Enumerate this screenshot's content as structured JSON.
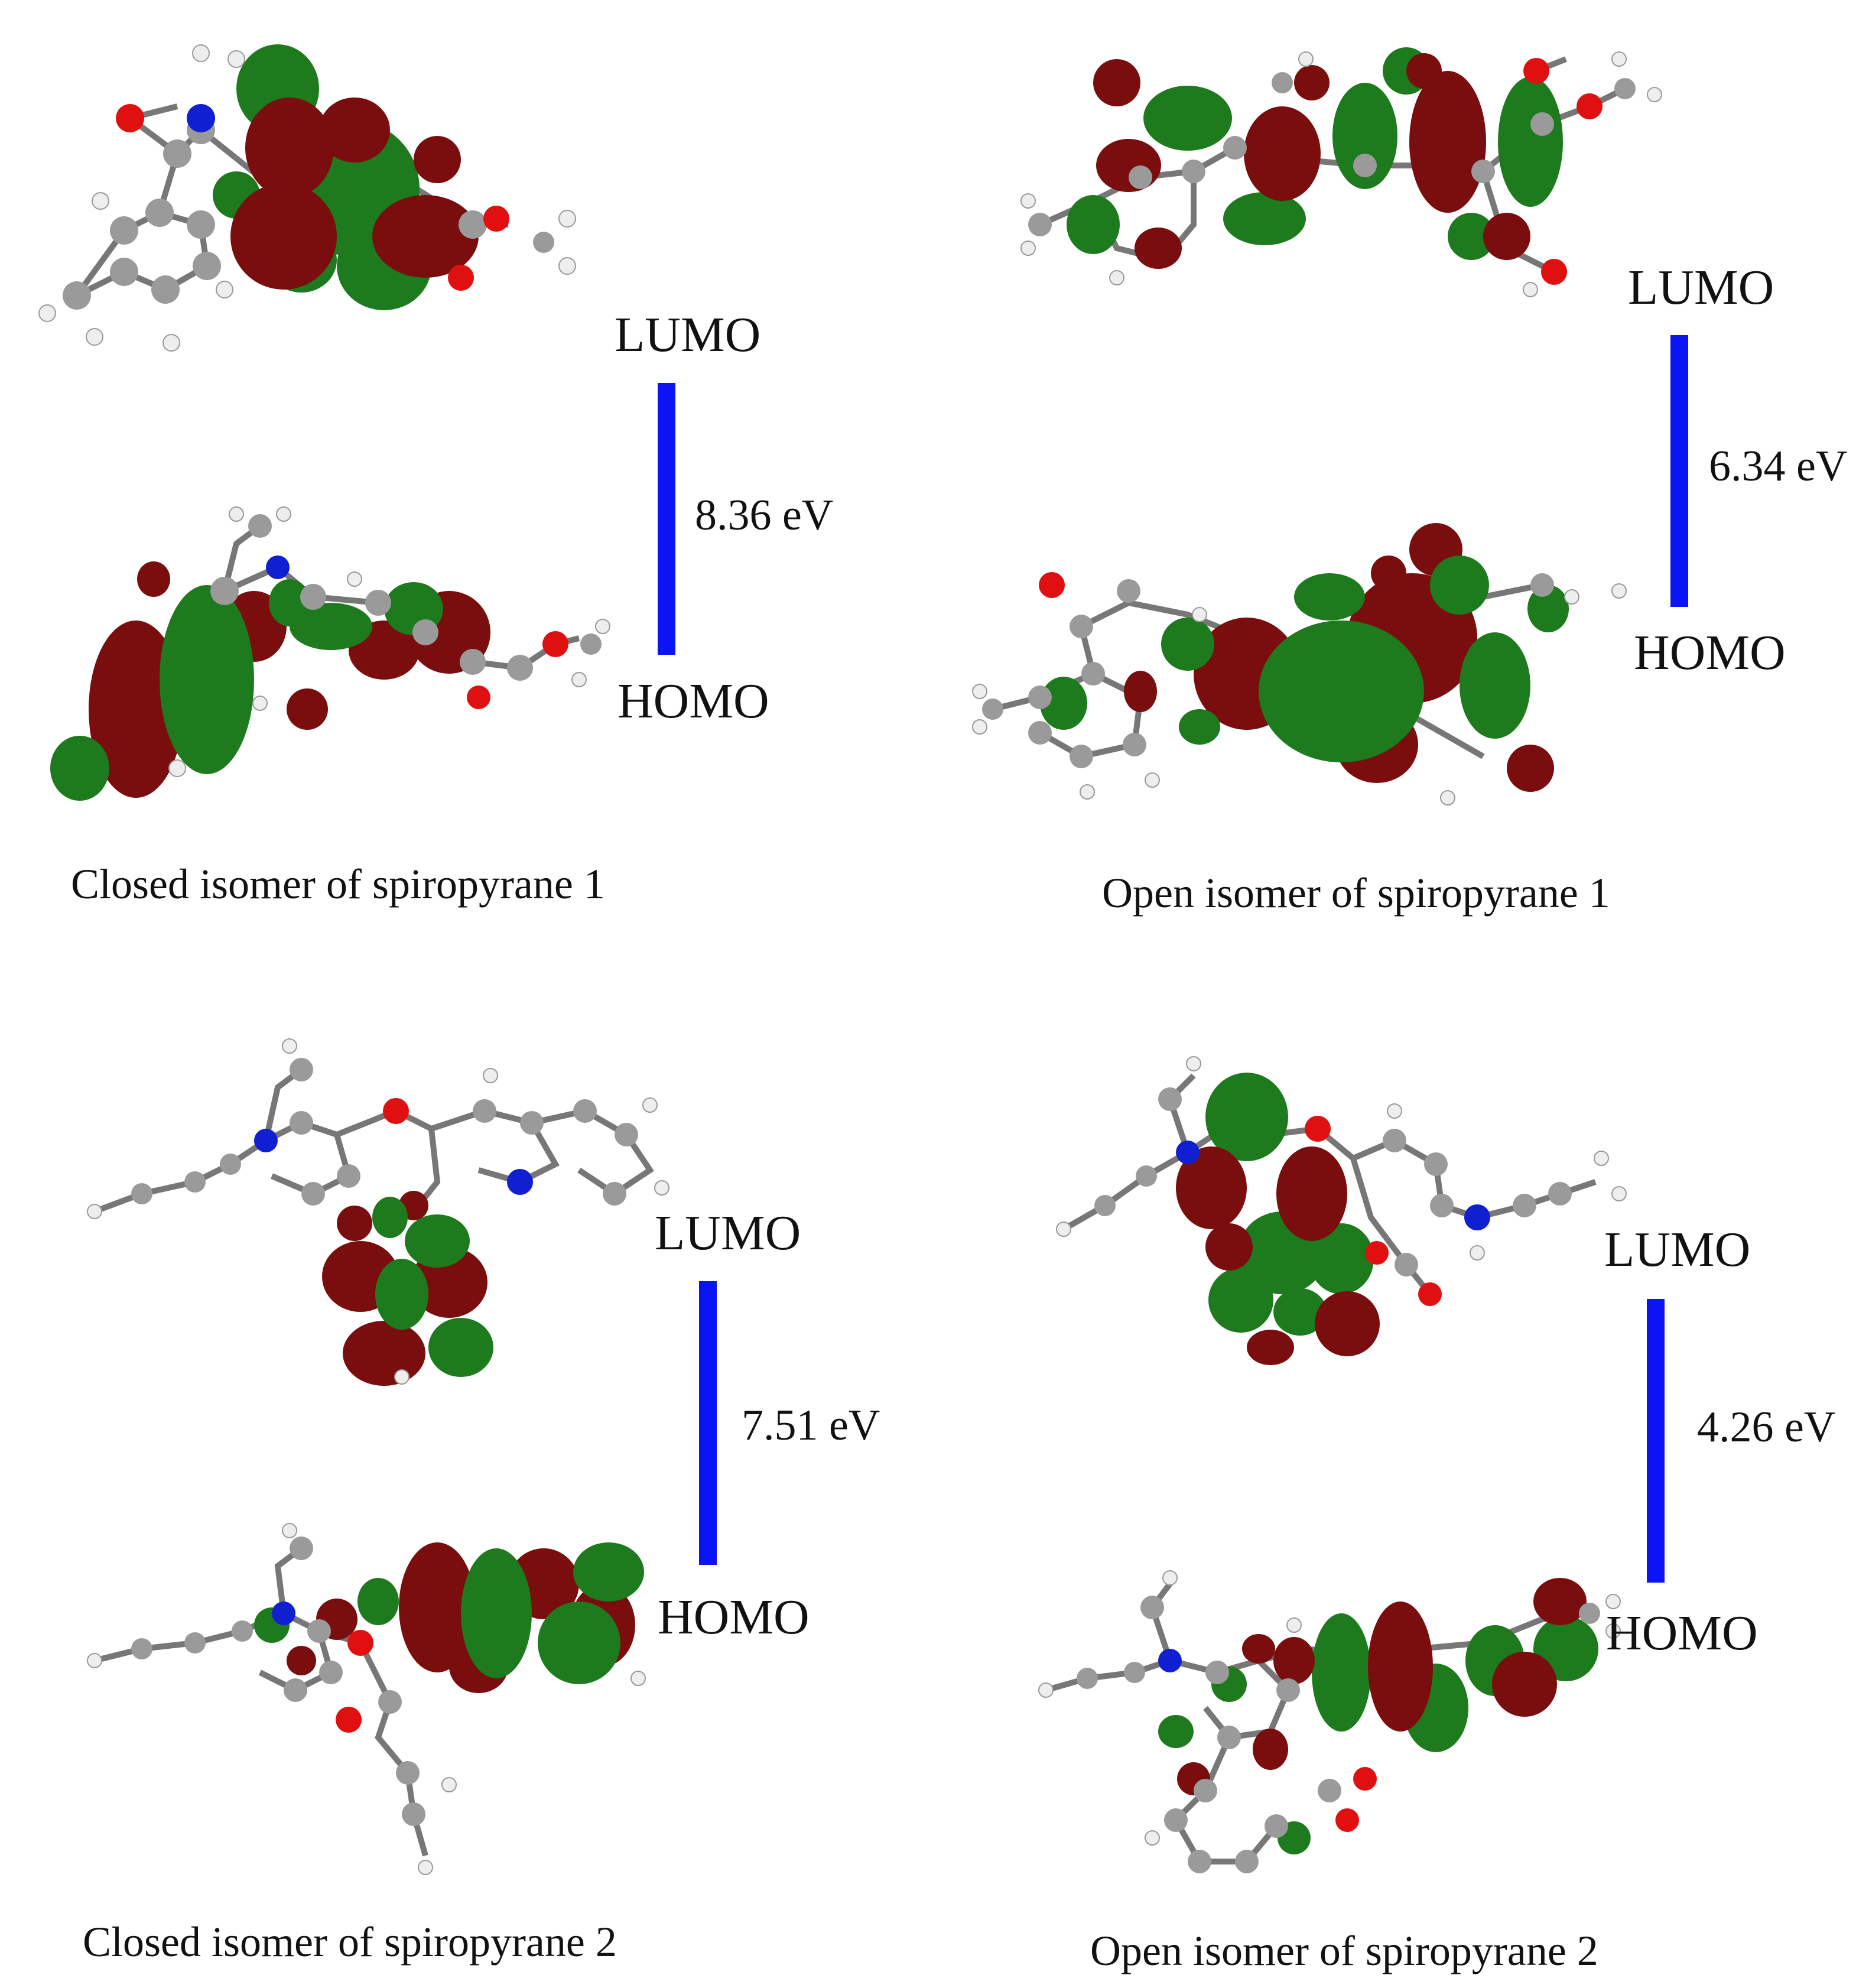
{
  "colors": {
    "gap_bar": "#0a14f5",
    "lobe_positive": "#1d7a1d",
    "lobe_negative": "#7a0d0d",
    "carbon": "#9a9a9a",
    "hydrogen": "#f0f0f0",
    "oxygen": "#e01010",
    "nitrogen": "#1020d0"
  },
  "panels": [
    {
      "caption": "Closed isomer of spiropyrane 1",
      "lumo_label": "LUMO",
      "homo_label": "HOMO",
      "gap_label": "8.36 eV",
      "gap_ev": 8.36
    },
    {
      "caption": "Open isomer of spiropyrane 1",
      "lumo_label": "LUMO",
      "homo_label": "HOMO",
      "gap_label": "6.34 eV",
      "gap_ev": 6.34
    },
    {
      "caption": "Closed isomer of spiropyrane 2",
      "lumo_label": "LUMO",
      "homo_label": "HOMO",
      "gap_label": "7.51 eV",
      "gap_ev": 7.51
    },
    {
      "caption": "Open isomer of spiropyrane 2",
      "lumo_label": "LUMO",
      "homo_label": "HOMO",
      "gap_label": "4.26 eV",
      "gap_ev": 4.26
    }
  ]
}
